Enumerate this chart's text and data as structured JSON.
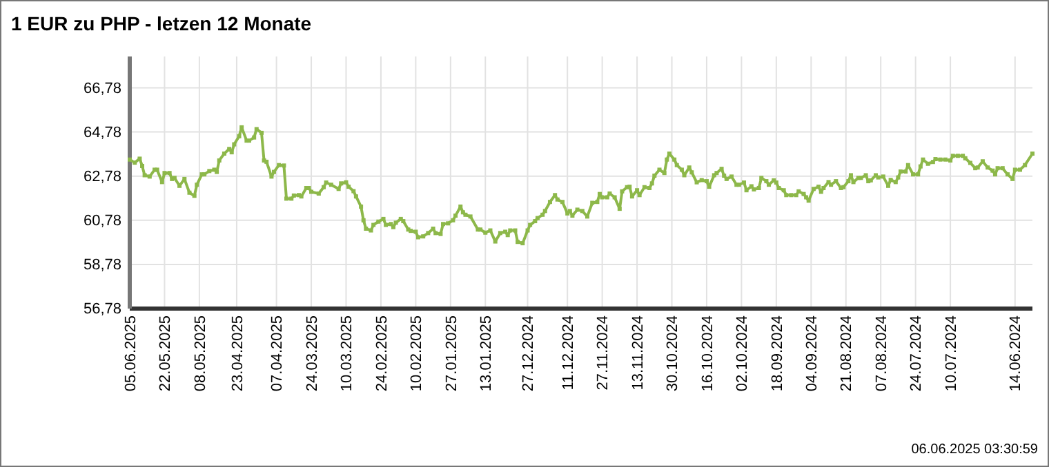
{
  "chart_data": {
    "type": "line",
    "title": "1 EUR zu PHP - letzen 12 Monate",
    "annotations": [
      "06.06.2025 03:30:59"
    ],
    "xlim": [
      "2025-06-05",
      "2024-06-07"
    ],
    "xticks": [
      {
        "value": "2025-06-05",
        "label": "05.06.2025"
      },
      {
        "value": "2025-05-22",
        "label": "22.05.2025"
      },
      {
        "value": "2025-05-08",
        "label": "08.05.2025"
      },
      {
        "value": "2025-04-23",
        "label": "23.04.2025"
      },
      {
        "value": "2025-04-07",
        "label": "07.04.2025"
      },
      {
        "value": "2025-03-24",
        "label": "24.03.2025"
      },
      {
        "value": "2025-03-10",
        "label": "10.03.2025"
      },
      {
        "value": "2025-02-24",
        "label": "24.02.2025"
      },
      {
        "value": "2025-02-10",
        "label": "10.02.2025"
      },
      {
        "value": "2025-01-27",
        "label": "27.01.2025"
      },
      {
        "value": "2025-01-13",
        "label": "13.01.2025"
      },
      {
        "value": "2024-12-27",
        "label": "27.12.2024"
      },
      {
        "value": "2024-12-11",
        "label": "11.12.2024"
      },
      {
        "value": "2024-11-27",
        "label": "27.11.2024"
      },
      {
        "value": "2024-11-13",
        "label": "13.11.2024"
      },
      {
        "value": "2024-10-30",
        "label": "30.10.2024"
      },
      {
        "value": "2024-10-16",
        "label": "16.10.2024"
      },
      {
        "value": "2024-10-02",
        "label": "02.10.2024"
      },
      {
        "value": "2024-09-18",
        "label": "18.09.2024"
      },
      {
        "value": "2024-09-04",
        "label": "04.09.2024"
      },
      {
        "value": "2024-08-21",
        "label": "21.08.2024"
      },
      {
        "value": "2024-08-07",
        "label": "07.08.2024"
      },
      {
        "value": "2024-07-24",
        "label": "24.07.2024"
      },
      {
        "value": "2024-07-10",
        "label": "10.07.2024"
      },
      {
        "value": "2024-06-14",
        "label": "14.06.2024"
      }
    ],
    "ylim": [
      56.78,
      68.2
    ],
    "yticks": [
      {
        "value": 56.78,
        "label": "56,78"
      },
      {
        "value": 58.78,
        "label": "58,78"
      },
      {
        "value": 60.78,
        "label": "60,78"
      },
      {
        "value": 62.78,
        "label": "62,78"
      },
      {
        "value": 64.78,
        "label": "64,78"
      },
      {
        "value": 66.78,
        "label": "66,78"
      }
    ],
    "grid": true,
    "marker": "square",
    "line_style": "solid",
    "x": [
      "2025-06-05",
      "2025-06-03",
      "2025-06-01",
      "2025-05-31",
      "2025-05-30",
      "2025-05-28",
      "2025-05-26",
      "2025-05-25",
      "2025-05-23",
      "2025-05-22",
      "2025-05-20",
      "2025-05-19",
      "2025-05-18",
      "2025-05-16",
      "2025-05-14",
      "2025-05-12",
      "2025-05-10",
      "2025-05-09",
      "2025-05-07",
      "2025-05-06",
      "2025-05-04",
      "2025-05-02",
      "2025-05-01",
      "2025-04-30",
      "2025-04-28",
      "2025-04-26",
      "2025-04-25",
      "2025-04-24",
      "2025-04-22",
      "2025-04-21",
      "2025-04-19",
      "2025-04-18",
      "2025-04-16",
      "2025-04-15",
      "2025-04-13",
      "2025-04-12",
      "2025-04-11",
      "2025-04-09",
      "2025-04-08",
      "2025-04-06",
      "2025-04-04",
      "2025-04-03",
      "2025-04-01",
      "2025-03-31",
      "2025-03-29",
      "2025-03-28",
      "2025-03-26",
      "2025-03-25",
      "2025-03-24",
      "2025-03-21",
      "2025-03-19",
      "2025-03-18",
      "2025-03-16",
      "2025-03-13",
      "2025-03-12",
      "2025-03-10",
      "2025-03-09",
      "2025-03-07",
      "2025-03-06",
      "2025-03-04",
      "2025-03-03",
      "2025-03-02",
      "2025-02-28",
      "2025-02-27",
      "2025-02-25",
      "2025-02-23",
      "2025-02-22",
      "2025-02-20",
      "2025-02-19",
      "2025-02-18",
      "2025-02-16",
      "2025-02-15",
      "2025-02-13",
      "2025-02-12",
      "2025-02-10",
      "2025-02-09",
      "2025-02-07",
      "2025-02-05",
      "2025-02-03",
      "2025-02-02",
      "2025-01-31",
      "2025-01-30",
      "2025-01-28",
      "2025-01-26",
      "2025-01-25",
      "2025-01-23",
      "2025-01-22",
      "2025-01-21",
      "2025-01-19",
      "2025-01-16",
      "2025-01-15",
      "2025-01-13",
      "2025-01-11",
      "2025-01-09",
      "2025-01-07",
      "2025-01-05",
      "2025-01-04",
      "2025-01-03",
      "2025-01-01",
      "2024-12-31",
      "2024-12-29",
      "2024-12-27",
      "2024-12-26",
      "2024-12-24",
      "2024-12-23",
      "2024-12-21",
      "2024-12-20",
      "2024-12-18",
      "2024-12-16",
      "2024-12-15",
      "2024-12-13",
      "2024-12-11",
      "2024-12-10",
      "2024-12-09",
      "2024-12-07",
      "2024-12-05",
      "2024-12-03",
      "2024-12-01",
      "2024-11-29",
      "2024-11-28",
      "2024-11-27",
      "2024-11-25",
      "2024-11-24",
      "2024-11-22",
      "2024-11-20",
      "2024-11-19",
      "2024-11-17",
      "2024-11-16",
      "2024-11-15",
      "2024-11-13",
      "2024-11-12",
      "2024-11-10",
      "2024-11-08",
      "2024-11-07",
      "2024-11-06",
      "2024-11-04",
      "2024-11-02",
      "2024-11-01",
      "2024-10-31",
      "2024-10-29",
      "2024-10-28",
      "2024-10-26",
      "2024-10-25",
      "2024-10-23",
      "2024-10-22",
      "2024-10-20",
      "2024-10-18",
      "2024-10-16",
      "2024-10-15",
      "2024-10-13",
      "2024-10-12",
      "2024-10-10",
      "2024-10-09",
      "2024-10-08",
      "2024-10-06",
      "2024-10-04",
      "2024-10-03",
      "2024-10-01",
      "2024-09-30",
      "2024-09-28",
      "2024-09-27",
      "2024-09-25",
      "2024-09-24",
      "2024-09-22",
      "2024-09-21",
      "2024-09-19",
      "2024-09-18",
      "2024-09-17",
      "2024-09-15",
      "2024-09-14",
      "2024-09-12",
      "2024-09-10",
      "2024-09-09",
      "2024-09-07",
      "2024-09-06",
      "2024-09-05",
      "2024-09-03",
      "2024-09-01",
      "2024-08-31",
      "2024-08-30",
      "2024-08-28",
      "2024-08-27",
      "2024-08-25",
      "2024-08-23",
      "2024-08-22",
      "2024-08-20",
      "2024-08-19",
      "2024-08-18",
      "2024-08-16",
      "2024-08-15",
      "2024-08-13",
      "2024-08-12",
      "2024-08-11",
      "2024-08-09",
      "2024-08-08",
      "2024-08-06",
      "2024-08-04",
      "2024-08-03",
      "2024-08-01",
      "2024-07-31",
      "2024-07-30",
      "2024-07-28",
      "2024-07-27",
      "2024-07-25",
      "2024-07-23",
      "2024-07-22",
      "2024-07-21",
      "2024-07-19",
      "2024-07-17",
      "2024-07-16",
      "2024-07-14",
      "2024-07-12",
      "2024-07-10",
      "2024-07-09",
      "2024-07-07",
      "2024-07-05",
      "2024-07-04",
      "2024-07-02",
      "2024-06-30",
      "2024-06-29",
      "2024-06-27",
      "2024-06-25",
      "2024-06-23",
      "2024-06-22",
      "2024-06-21",
      "2024-06-19",
      "2024-06-17",
      "2024-06-15",
      "2024-06-14",
      "2024-06-12",
      "2024-06-10",
      "2024-06-07"
    ],
    "series": [
      {
        "color": "#8db84a",
        "values": [
          63.53,
          63.39,
          63.57,
          63.24,
          62.82,
          62.76,
          63.07,
          63.07,
          62.51,
          62.92,
          62.92,
          62.65,
          62.7,
          62.34,
          62.65,
          62.03,
          61.89,
          62.39,
          62.86,
          62.86,
          63.01,
          63.07,
          62.97,
          63.49,
          63.8,
          64.01,
          63.86,
          64.22,
          64.59,
          64.99,
          64.39,
          64.39,
          64.53,
          64.91,
          64.74,
          63.49,
          63.43,
          62.76,
          62.97,
          63.28,
          63.26,
          61.76,
          61.76,
          61.9,
          61.92,
          61.86,
          62.24,
          62.24,
          62.07,
          61.99,
          62.28,
          62.49,
          62.39,
          62.2,
          62.45,
          62.5,
          62.3,
          62.1,
          61.86,
          61.4,
          60.78,
          60.4,
          60.32,
          60.57,
          60.72,
          60.84,
          60.57,
          60.61,
          60.47,
          60.67,
          60.84,
          60.74,
          60.36,
          60.3,
          60.26,
          60.01,
          60.05,
          60.2,
          60.4,
          60.2,
          60.16,
          60.61,
          60.64,
          60.78,
          60.99,
          61.4,
          61.14,
          61.03,
          60.95,
          60.36,
          60.36,
          60.22,
          60.32,
          59.82,
          60.2,
          60.26,
          60.11,
          60.32,
          60.32,
          59.8,
          59.74,
          60.32,
          60.57,
          60.74,
          60.88,
          61.03,
          61.2,
          61.61,
          61.92,
          61.72,
          61.61,
          61.09,
          61.2,
          60.99,
          61.26,
          61.2,
          60.95,
          61.57,
          61.61,
          61.97,
          61.82,
          61.82,
          61.99,
          61.82,
          61.3,
          62.09,
          62.28,
          62.3,
          61.86,
          62.14,
          61.92,
          62.28,
          62.24,
          62.45,
          62.8,
          63.07,
          62.92,
          63.53,
          63.8,
          63.53,
          63.28,
          63.07,
          62.82,
          63.17,
          62.95,
          62.5,
          62.6,
          62.55,
          62.3,
          62.82,
          62.92,
          63.11,
          62.8,
          62.65,
          62.76,
          62.39,
          62.39,
          62.49,
          62.14,
          62.32,
          62.18,
          62.24,
          62.7,
          62.55,
          62.39,
          62.59,
          62.49,
          62.24,
          62.14,
          61.92,
          61.92,
          61.92,
          62.09,
          61.97,
          61.82,
          61.67,
          62.2,
          62.3,
          62.07,
          62.24,
          62.51,
          62.39,
          62.55,
          62.24,
          62.28,
          62.55,
          62.82,
          62.51,
          62.7,
          62.7,
          62.82,
          62.55,
          62.59,
          62.82,
          62.72,
          62.76,
          62.34,
          62.61,
          62.51,
          62.72,
          62.99,
          62.99,
          63.28,
          62.86,
          62.86,
          63.22,
          63.53,
          63.34,
          63.42,
          63.55,
          63.53,
          63.53,
          63.49,
          63.7,
          63.7,
          63.7,
          63.59,
          63.38,
          63.14,
          63.17,
          63.45,
          63.17,
          63.03,
          62.86,
          63.14,
          63.14,
          62.86,
          62.65,
          63.07,
          63.07,
          63.28,
          63.8
        ]
      }
    ]
  }
}
